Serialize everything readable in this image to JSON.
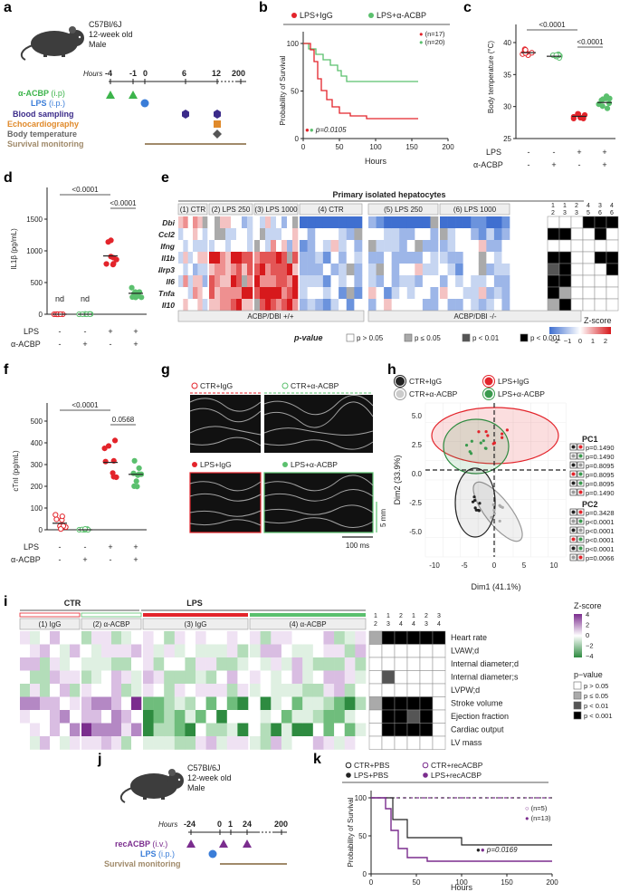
{
  "panel_letters": [
    "a",
    "b",
    "c",
    "d",
    "e",
    "f",
    "g",
    "h",
    "i",
    "j",
    "k"
  ],
  "a": {
    "strain": "C57Bl/6J",
    "age": "12-week old",
    "sex": "Male",
    "hours_label": "Hours",
    "ticks": [
      "-4",
      "-1",
      "0",
      "6",
      "12",
      "200"
    ],
    "rows": [
      {
        "label": "α-ACBP",
        "route": "(i.p)",
        "color": "#3cb44b"
      },
      {
        "label": "LPS",
        "route": "(i.p.)",
        "color": "#3a7dd8"
      },
      {
        "label": "Blood sampling",
        "route": "",
        "color": "#3b2b8a"
      },
      {
        "label": "Echocardiography",
        "route": "",
        "color": "#e08a2b"
      },
      {
        "label": "Body temperature",
        "route": "",
        "color": "#666666"
      },
      {
        "label": "Survival monitoring",
        "route": "",
        "color": "#a08a6a"
      }
    ]
  },
  "b": {
    "legend": [
      "LPS+IgG",
      "LPS+α-ACBP"
    ],
    "n": [
      "(n=17)",
      "(n=20)"
    ],
    "pvalue": "p=0.0105",
    "ylabel": "Probability of Survival",
    "xlabel": "Hours",
    "yticks": [
      "0",
      "50",
      "100"
    ],
    "xticks": [
      "0",
      "50",
      "100",
      "150",
      "200"
    ],
    "colors": {
      "igg": "#e3242b",
      "acbp": "#5bc06e"
    }
  },
  "c": {
    "ylabel": "Body temperature (°C)",
    "yticks": [
      "25",
      "30",
      "35",
      "40"
    ],
    "p1": "<0.0001",
    "p2": "<0.0001",
    "lps_label": "LPS",
    "acbp_label": "α-ACBP",
    "lps": [
      "-",
      "-",
      "+",
      "+"
    ],
    "acbp": [
      "-",
      "+",
      "-",
      "+"
    ],
    "chart_data": {
      "type": "scatter",
      "categories": [
        "1",
        "2",
        "3",
        "4"
      ],
      "means": [
        37.8,
        37.2,
        27.2,
        29.5
      ]
    }
  },
  "d": {
    "ylabel": "IL1β (pg/mL)",
    "yticks": [
      "0",
      "500",
      "1000",
      "1500"
    ],
    "p1": "<0.0001",
    "p2": "<0.0001",
    "nd": [
      "nd",
      "nd"
    ],
    "lps_label": "LPS",
    "acbp_label": "α-ACBP",
    "lps": [
      "-",
      "-",
      "+",
      "+"
    ],
    "acbp": [
      "-",
      "+",
      "-",
      "+"
    ],
    "chart_data": {
      "type": "scatter",
      "means": [
        0,
        0,
        920,
        330
      ]
    }
  },
  "e": {
    "title": "Primary isolated hepatocytes",
    "groups": [
      "(1) CTR",
      "(2) LPS 250",
      "(3) LPS 1000",
      "(4) CTR",
      "(5) LPS 250",
      "(6) LPS 1000"
    ],
    "genes": [
      "Dbi",
      "Ccl2",
      "Ifng",
      "Il1b",
      "Nlrp3",
      "Il6",
      "Tnfa",
      "Il10"
    ],
    "geno": [
      "ACBP/DBI +/+",
      "ACBP/DBI -/-"
    ],
    "comp_top": [
      "1",
      "1",
      "2",
      "4",
      "3",
      "4"
    ],
    "comp_bot": [
      "2",
      "3",
      "3",
      "5",
      "6",
      "6"
    ],
    "zscore_label": "Z-score",
    "zscore_ticks": [
      "−2",
      "−1",
      "0",
      "1",
      "2"
    ],
    "pvalue_label": "p-value",
    "pvalue_levels": [
      "p > 0.05",
      "p ≤ 0.05",
      "p < 0.01",
      "p < 0.001"
    ]
  },
  "f": {
    "ylabel": "cTnI (pg/mL)",
    "yticks": [
      "0",
      "100",
      "200",
      "300",
      "400",
      "500"
    ],
    "p1": "<0.0001",
    "p2": "0.0568",
    "lps_label": "LPS",
    "acbp_label": "α-ACBP",
    "lps": [
      "-",
      "-",
      "+",
      "+"
    ],
    "acbp": [
      "-",
      "+",
      "-",
      "+"
    ],
    "chart_data": {
      "type": "scatter",
      "means": [
        30,
        0,
        310,
        255
      ]
    }
  },
  "g": {
    "legend_top": [
      "CTR+IgG",
      "CTR+α-ACBP"
    ],
    "legend_bot": [
      "LPS+IgG",
      "LPS+α-ACBP"
    ],
    "scale_y": "5 mm",
    "scale_x": "100 ms"
  },
  "h": {
    "legend": [
      "CTR+IgG",
      "LPS+IgG",
      "CTR+α-ACBP",
      "LPS+α-ACBP"
    ],
    "xlabel": "Dim1 (41.1%)",
    "ylabel": "Dim2 (33.9%)",
    "xticks": [
      "-10",
      "-5",
      "0",
      "5",
      "10"
    ],
    "yticks": [
      "5.0",
      "2.5",
      "0.0",
      "-2.5",
      "-5.0"
    ],
    "pc1_title": "PC1",
    "pc1": [
      "p=0.1490",
      "p=0.1490",
      "p=0.8095",
      "p=0.8095",
      "p=0.8095",
      "p=0.1490"
    ],
    "pc2_title": "PC2",
    "pc2": [
      "p=0.3428",
      "p<0.0001",
      "p<0.0001",
      "p<0.0001",
      "p<0.0001",
      "p=0.0066"
    ]
  },
  "i": {
    "top_groups": [
      "CTR",
      "LPS"
    ],
    "groups": [
      "(1) IgG",
      "(2) α-ACBP",
      "(3) IgG",
      "(4) α-ACBP"
    ],
    "params": [
      "Heart rate",
      "LVAW;d",
      "Internal diameter;d",
      "Internal diameter;s",
      "LVPW;d",
      "Stroke volume",
      "Ejection fraction",
      "Cardiac output",
      "LV mass"
    ],
    "comp_top": [
      "1",
      "1",
      "2",
      "1",
      "2",
      "3"
    ],
    "comp_bot": [
      "2",
      "3",
      "4",
      "4",
      "3",
      "4"
    ],
    "zscore_label": "Z-score",
    "zscore_ticks": [
      "4",
      "2",
      "0",
      "−2",
      "−4"
    ],
    "pvalue_label": "p−value",
    "pvalue_levels": [
      "p > 0.05",
      "p ≤ 0.05",
      "p < 0.01",
      "p < 0.001"
    ]
  },
  "j": {
    "strain": "C57Bl/6J",
    "age": "12-week old",
    "sex": "Male",
    "hours_label": "Hours",
    "ticks": [
      "-24",
      "0",
      "1",
      "24",
      "200"
    ],
    "rows": [
      {
        "label": "recACBP",
        "route": "(i.v.)",
        "color": "#7b2d8e"
      },
      {
        "label": "LPS",
        "route": "(i.p.)",
        "color": "#3a7dd8"
      },
      {
        "label": "Survival monitoring",
        "route": "",
        "color": "#a08a6a"
      }
    ]
  },
  "k": {
    "legend": [
      "CTR+PBS",
      "CTR+recACBP",
      "LPS+PBS",
      "LPS+recACBP"
    ],
    "n": [
      "(n=5)",
      "(n=13)"
    ],
    "pvalue": "p=0.0169",
    "ylabel": "Probability of Survival",
    "xlabel": "Hours",
    "yticks": [
      "0",
      "50",
      "100"
    ],
    "xticks": [
      "0",
      "50",
      "100",
      "150",
      "200"
    ]
  }
}
